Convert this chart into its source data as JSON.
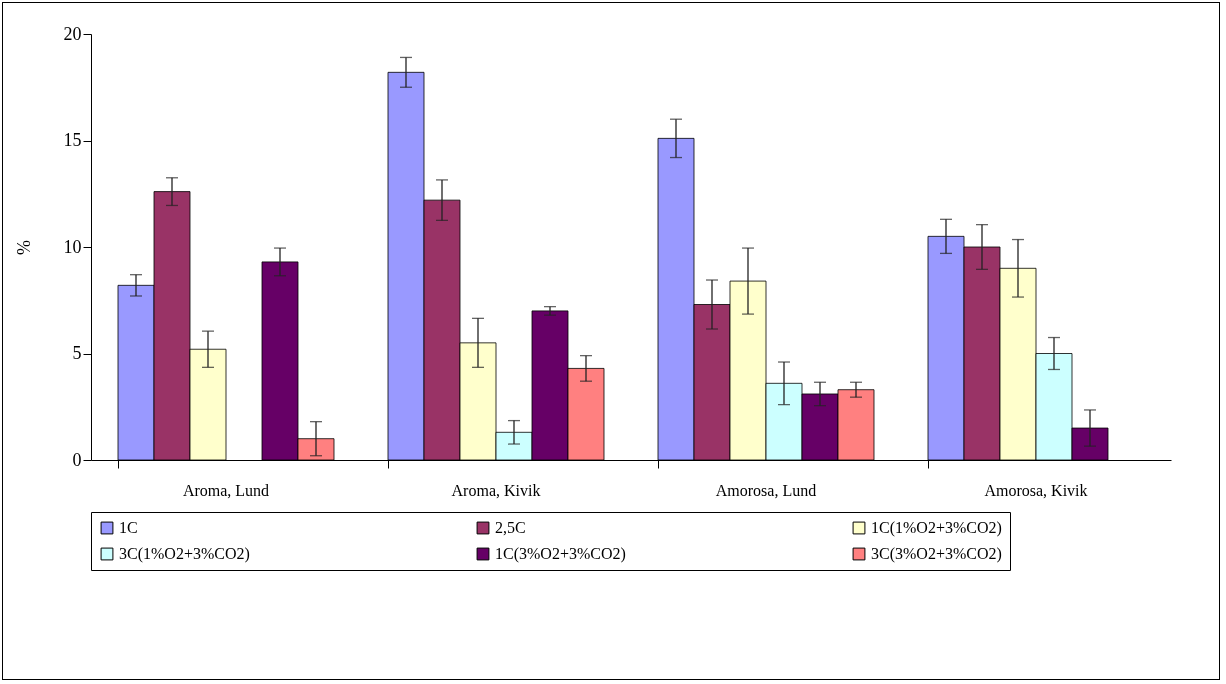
{
  "chart_data": {
    "type": "bar",
    "ylabel": "%",
    "categories": [
      "Aroma, Lund",
      "Aroma, Kivik",
      "Amorosa, Lund",
      "Amorosa, Kivik"
    ],
    "series": [
      {
        "name": "1C",
        "color": "#9999ff",
        "values": [
          8.2,
          18.2,
          15.1,
          10.5
        ],
        "errors": [
          0.5,
          0.7,
          0.9,
          0.8
        ]
      },
      {
        "name": "2,5C",
        "color": "#993366",
        "values": [
          12.6,
          12.2,
          7.3,
          10.0
        ],
        "errors": [
          0.65,
          0.95,
          1.15,
          1.05
        ]
      },
      {
        "name": "1C(1%O2+3%CO2)",
        "color": "#ffffcc",
        "values": [
          5.2,
          5.5,
          8.4,
          9.0
        ],
        "errors": [
          0.85,
          1.15,
          1.55,
          1.35
        ]
      },
      {
        "name": "3C(1%O2+3%CO2)",
        "color": "#ccffff",
        "values": [
          null,
          1.3,
          3.6,
          5.0
        ],
        "errors": [
          null,
          0.55,
          1.0,
          0.75
        ]
      },
      {
        "name": "1C(3%O2+3%CO2)",
        "color": "#660066",
        "values": [
          9.3,
          7.0,
          3.1,
          1.5
        ],
        "errors": [
          0.65,
          0.2,
          0.55,
          0.85
        ]
      },
      {
        "name": "3C(3%O2+3%CO2)",
        "color": "#ff8080",
        "values": [
          1.0,
          4.3,
          3.3,
          null
        ],
        "errors": [
          0.8,
          0.6,
          0.35,
          null
        ]
      }
    ],
    "ylim": [
      0,
      20
    ],
    "yticks": [
      0,
      5,
      10,
      15,
      20
    ],
    "grid": false,
    "legend": "bottom"
  }
}
